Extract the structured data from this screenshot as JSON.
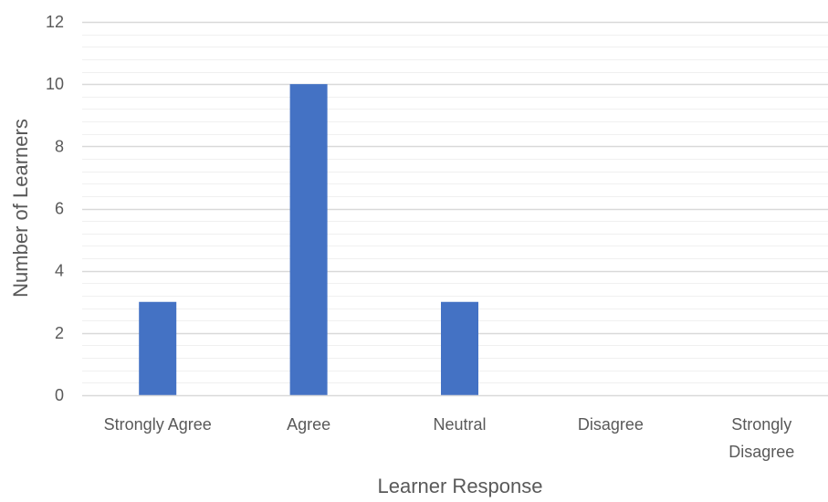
{
  "chart_data": {
    "type": "bar",
    "xlabel": "Learner Response",
    "ylabel": "Number of Learners",
    "categories": [
      [
        "Strongly Agree"
      ],
      [
        "Agree"
      ],
      [
        "Neutral"
      ],
      [
        "Disagree"
      ],
      [
        "Strongly",
        "Disagree"
      ]
    ],
    "values": [
      3,
      10,
      3,
      0,
      0
    ],
    "ylim": [
      0,
      12
    ],
    "yticks": [
      "0",
      "2",
      "4",
      "6",
      "8",
      "10",
      "12"
    ],
    "grid": true,
    "legend": "none",
    "bar_color": "#4472C4",
    "major_grid_color": "#D9D9D9",
    "minor_grid_color": "#F0F0F0"
  }
}
